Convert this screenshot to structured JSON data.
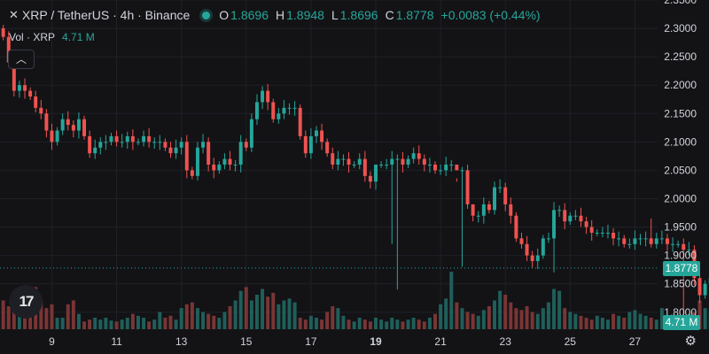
{
  "legend": {
    "symbol": "XRP / TetherUS · 4h · Binance",
    "open_label": "O",
    "open": "1.8696",
    "high_label": "H",
    "high": "1.8948",
    "low_label": "L",
    "low": "1.8696",
    "close_label": "C",
    "close": "1.8778",
    "change": "+0.0083 (+0.44%)"
  },
  "volume": {
    "label": "Vol · XRP",
    "value": "4.71 M"
  },
  "current_price_tag": "1.8778",
  "current_volume_tag": "4.71 M",
  "colors": {
    "up": "#26a69a",
    "down": "#ef5350",
    "up_vol": "#1f5f5a",
    "down_vol": "#7a3535",
    "grid": "#1f2126",
    "axis_text": "#d1d4dc",
    "background": "#131316"
  },
  "icons": [
    "x-logo-icon",
    "status-dot-icon",
    "chevron-up-icon",
    "tradingview-logo-icon",
    "gear-icon"
  ],
  "chart_data": {
    "type": "candlestick",
    "y_range": [
      1.77,
      2.35
    ],
    "y_ticks": [
      "2.3500",
      "2.3000",
      "2.2500",
      "2.2000",
      "2.1500",
      "2.1000",
      "2.0500",
      "2.0000",
      "1.9500",
      "1.9000",
      "1.8500",
      "1.8000"
    ],
    "y_tick_values": [
      2.35,
      2.3,
      2.25,
      2.2,
      2.15,
      2.1,
      2.05,
      2.0,
      1.95,
      1.9,
      1.85,
      1.8
    ],
    "x_range": [
      7.4,
      27.7
    ],
    "x_ticks": [
      {
        "label": "9",
        "day": 9
      },
      {
        "label": "11",
        "day": 11
      },
      {
        "label": "13",
        "day": 13
      },
      {
        "label": "15",
        "day": 15
      },
      {
        "label": "17",
        "day": 17
      },
      {
        "label": "19",
        "day": 19,
        "bold": true
      },
      {
        "label": "21",
        "day": 21
      },
      {
        "label": "23",
        "day": 23
      },
      {
        "label": "25",
        "day": 25
      },
      {
        "label": "27",
        "day": 27
      }
    ],
    "start_day": 7.5,
    "candles_per_day": 6,
    "last_price": 1.8778,
    "closes": [
      2.285,
      2.24,
      2.19,
      2.2,
      2.19,
      2.18,
      2.16,
      2.15,
      2.12,
      2.1,
      2.12,
      2.14,
      2.13,
      2.12,
      2.14,
      2.11,
      2.08,
      2.09,
      2.1,
      2.1,
      2.11,
      2.1,
      2.1,
      2.11,
      2.1,
      2.1,
      2.11,
      2.1,
      2.1,
      2.1,
      2.09,
      2.08,
      2.09,
      2.1,
      2.05,
      2.04,
      2.09,
      2.1,
      2.06,
      2.05,
      2.06,
      2.07,
      2.06,
      2.06,
      2.1,
      2.09,
      2.14,
      2.17,
      2.19,
      2.17,
      2.14,
      2.15,
      2.16,
      2.16,
      2.16,
      2.11,
      2.08,
      2.11,
      2.12,
      2.1,
      2.08,
      2.06,
      2.07,
      2.07,
      2.06,
      2.06,
      2.07,
      2.04,
      2.03,
      2.06,
      2.06,
      2.06,
      2.07,
      2.07,
      2.06,
      2.07,
      2.08,
      2.07,
      2.06,
      2.06,
      2.05,
      2.05,
      2.06,
      2.06,
      2.05,
      2.05,
      1.99,
      1.97,
      1.97,
      1.99,
      1.98,
      2.02,
      2.02,
      1.99,
      1.97,
      1.93,
      1.92,
      1.9,
      1.89,
      1.9,
      1.93,
      1.93,
      1.98,
      1.98,
      1.96,
      1.97,
      1.97,
      1.96,
      1.95,
      1.94,
      1.94,
      1.94,
      1.94,
      1.93,
      1.93,
      1.92,
      1.92,
      1.93,
      1.93,
      1.93,
      1.92,
      1.93,
      1.93,
      1.92,
      1.92,
      1.92,
      1.91,
      1.91,
      1.86,
      1.83,
      1.85,
      1.86,
      1.8778
    ],
    "first_open": 2.3,
    "spikes": [
      {
        "index": 69,
        "high": 2.03
      },
      {
        "index": 72,
        "low": 1.92
      },
      {
        "index": 73,
        "low": 1.84
      },
      {
        "index": 84,
        "high": 2.03
      },
      {
        "index": 85,
        "low": 1.88
      },
      {
        "index": 87,
        "high": 1.99
      },
      {
        "index": 102,
        "low": 1.87
      },
      {
        "index": 120,
        "high": 1.965
      },
      {
        "index": 126,
        "low": 1.79
      }
    ],
    "volumes": [
      30,
      24,
      38,
      18,
      26,
      24,
      44,
      30,
      22,
      26,
      12,
      12,
      26,
      30,
      16,
      8,
      10,
      12,
      10,
      12,
      9,
      8,
      10,
      12,
      16,
      14,
      12,
      8,
      10,
      18,
      12,
      14,
      10,
      22,
      26,
      28,
      22,
      18,
      16,
      14,
      12,
      18,
      24,
      30,
      40,
      44,
      30,
      36,
      42,
      34,
      38,
      26,
      30,
      32,
      28,
      12,
      10,
      14,
      12,
      10,
      18,
      24,
      22,
      14,
      10,
      8,
      12,
      10,
      8,
      12,
      10,
      8,
      12,
      10,
      8,
      10,
      12,
      10,
      8,
      12,
      16,
      26,
      32,
      60,
      28,
      22,
      18,
      16,
      14,
      20,
      24,
      30,
      40,
      36,
      28,
      22,
      20,
      24,
      18,
      16,
      22,
      28,
      42,
      40,
      22,
      18,
      16,
      14,
      12,
      10,
      14,
      12,
      10,
      16,
      14,
      12,
      18,
      20,
      16,
      14,
      12,
      10,
      22,
      14,
      12,
      10,
      14,
      16,
      18,
      30,
      22,
      20,
      16
    ]
  }
}
